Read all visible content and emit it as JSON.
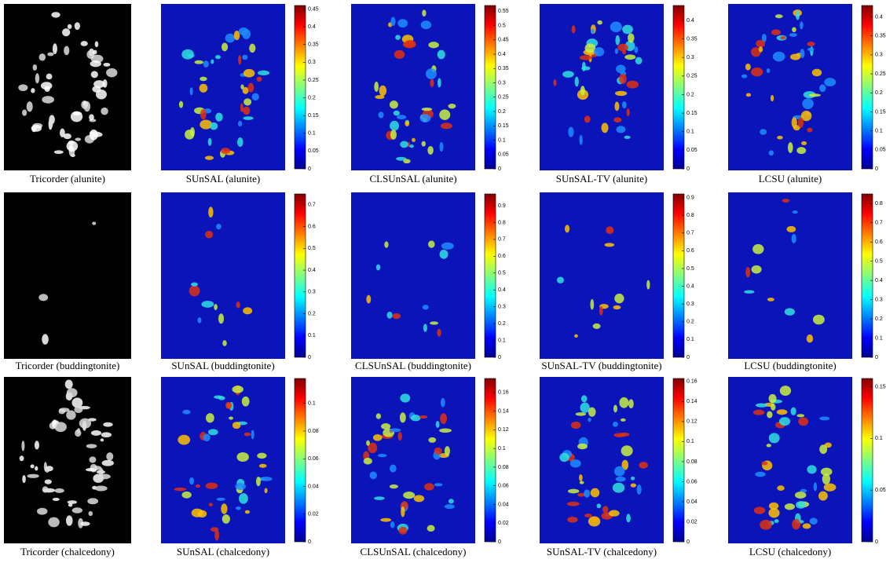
{
  "rows": [
    {
      "reference": "Tricorder (alunite)",
      "panels": [
        {
          "caption": "SUnSAL (alunite)",
          "colorbar": {
            "lim": [
              0,
              0.46
            ],
            "ticks": [
              0,
              0.05,
              0.1,
              0.15,
              0.2,
              0.25,
              0.3,
              0.35,
              0.4,
              0.45
            ]
          }
        },
        {
          "caption": "CLSUnSAL (alunite)",
          "colorbar": {
            "lim": [
              0,
              0.57
            ],
            "ticks": [
              0,
              0.05,
              0.1,
              0.15,
              0.2,
              0.25,
              0.3,
              0.35,
              0.4,
              0.45,
              0.5,
              0.55
            ]
          }
        },
        {
          "caption": "SUnSAL-TV (alunite)",
          "colorbar": {
            "lim": [
              0,
              0.44
            ],
            "ticks": [
              0,
              0.05,
              0.1,
              0.15,
              0.2,
              0.25,
              0.3,
              0.35,
              0.4
            ]
          }
        },
        {
          "caption": "LCSU (alunite)",
          "colorbar": {
            "lim": [
              0,
              0.43
            ],
            "ticks": [
              0,
              0.05,
              0.1,
              0.15,
              0.2,
              0.25,
              0.3,
              0.35,
              0.4
            ]
          }
        }
      ]
    },
    {
      "reference": "Tricorder (buddingtonite)",
      "panels": [
        {
          "caption": "SUnSAL (buddingtonite)",
          "colorbar": {
            "lim": [
              0,
              0.75
            ],
            "ticks": [
              0,
              0.1,
              0.2,
              0.3,
              0.4,
              0.5,
              0.6,
              0.7
            ]
          }
        },
        {
          "caption": "CLSUnSAL (buddingtonite)",
          "colorbar": {
            "lim": [
              0,
              0.97
            ],
            "ticks": [
              0,
              0.1,
              0.2,
              0.3,
              0.4,
              0.5,
              0.6,
              0.7,
              0.8,
              0.9
            ]
          }
        },
        {
          "caption": "SUnSAL-TV (buddingtonite)",
          "colorbar": {
            "lim": [
              0,
              0.92
            ],
            "ticks": [
              0,
              0.1,
              0.2,
              0.3,
              0.4,
              0.5,
              0.6,
              0.7,
              0.8,
              0.9
            ]
          }
        },
        {
          "caption": "LCSU (buddingtonite)",
          "colorbar": {
            "lim": [
              0,
              0.85
            ],
            "ticks": [
              0,
              0.1,
              0.2,
              0.3,
              0.4,
              0.5,
              0.6,
              0.7,
              0.8
            ]
          }
        }
      ]
    },
    {
      "reference": "Tricorder (chalcedony)",
      "panels": [
        {
          "caption": "SUnSAL (chalcedony)",
          "colorbar": {
            "lim": [
              0,
              0.118
            ],
            "ticks": [
              0,
              0.02,
              0.04,
              0.06,
              0.08,
              0.1
            ]
          }
        },
        {
          "caption": "CLSUnSAL (chalcedony)",
          "colorbar": {
            "lim": [
              0,
              0.175
            ],
            "ticks": [
              0,
              0.02,
              0.04,
              0.06,
              0.08,
              0.1,
              0.12,
              0.14,
              0.16
            ]
          }
        },
        {
          "caption": "SUnSAL-TV (chalcedony)",
          "colorbar": {
            "lim": [
              0,
              0.163
            ],
            "ticks": [
              0,
              0.02,
              0.04,
              0.06,
              0.08,
              0.1,
              0.12,
              0.14,
              0.16
            ]
          }
        },
        {
          "caption": "LCSU (chalcedony)",
          "colorbar": {
            "lim": [
              0,
              0.158
            ],
            "ticks": [
              0,
              0.05,
              0.1,
              0.15
            ]
          }
        }
      ]
    }
  ]
}
